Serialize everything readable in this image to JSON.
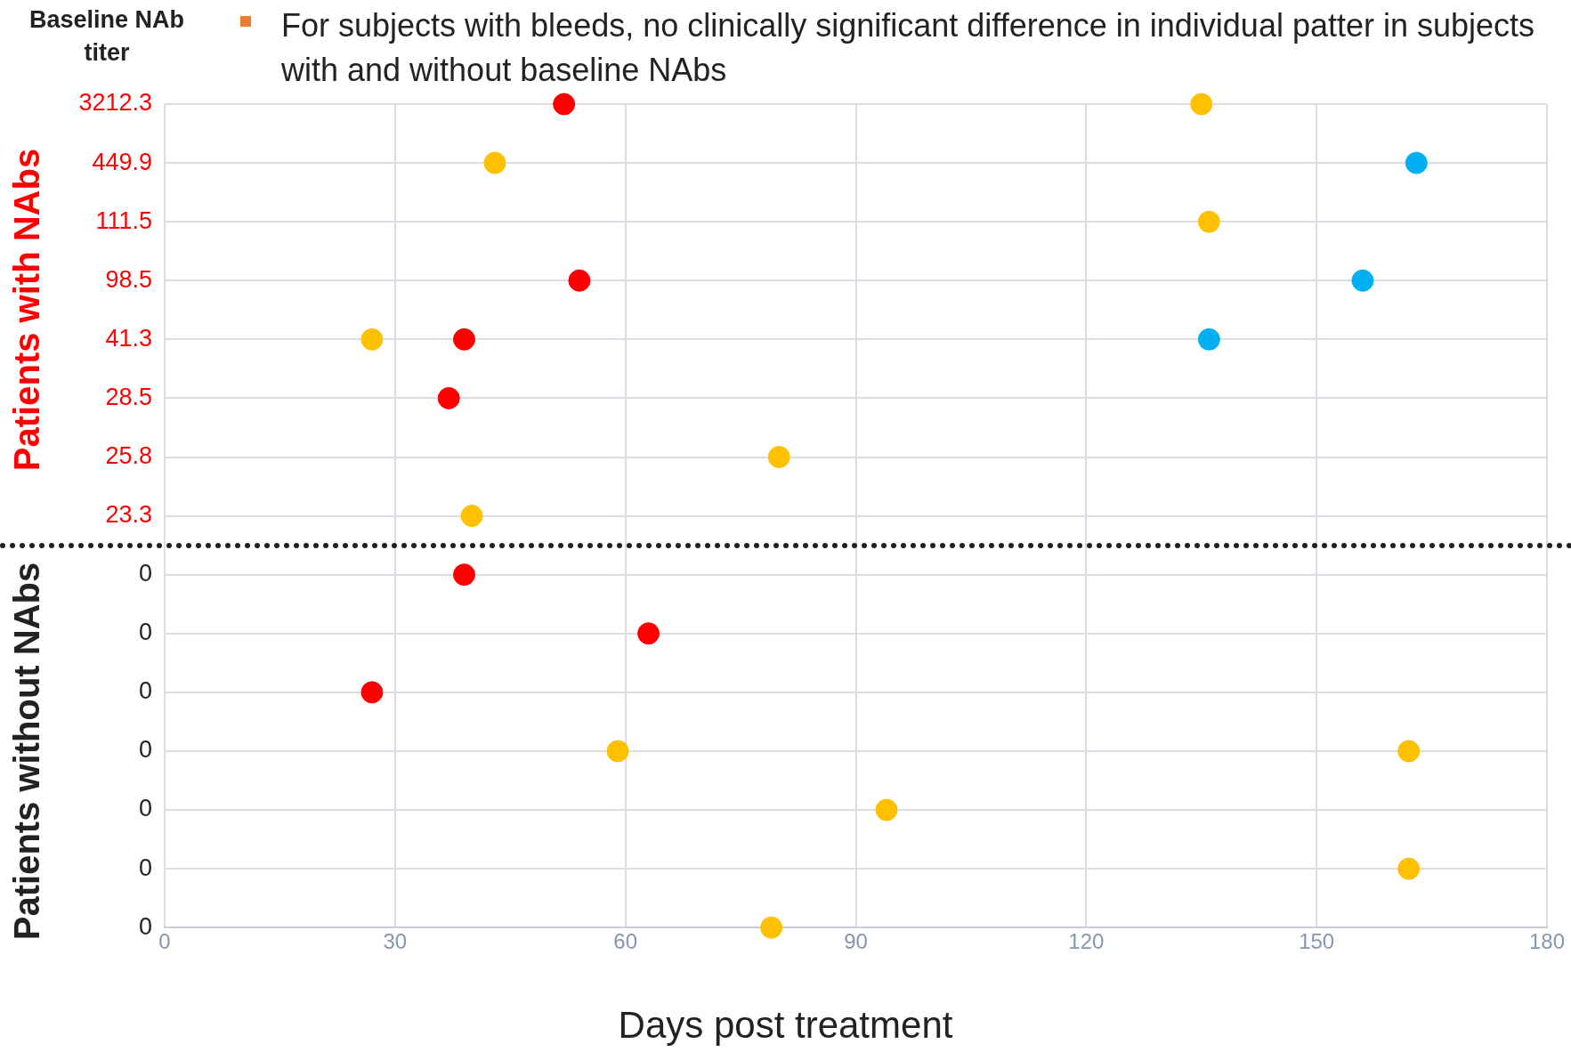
{
  "chart_data": {
    "type": "scatter",
    "orientation": "horizontal",
    "ylabel": "Baseline NAb titer",
    "subtitle": "For subjects with bleeds, no clinically significant difference in individual patter in subjects with and without baseline NAbs",
    "xlabel": "Days post treatment",
    "annotations": [
      "Patients with NAbs",
      "Patients without NAbs"
    ],
    "categories": [
      "3212.3",
      "449.9",
      "111.5",
      "98.5",
      "41.3",
      "28.5",
      "25.8",
      "23.3",
      "0",
      "0",
      "0",
      "0",
      "0",
      "0",
      "0"
    ],
    "series": [
      {
        "color": "#ff0000",
        "values": [
          52,
          null,
          null,
          54,
          39,
          37,
          null,
          null,
          39,
          63,
          27,
          null,
          null,
          null,
          null
        ]
      },
      {
        "color": "#ffc000",
        "values": [
          135,
          43,
          136,
          null,
          27,
          null,
          80,
          40,
          null,
          null,
          null,
          59,
          94,
          162,
          79
        ]
      },
      {
        "color": "#ffc000",
        "values": [
          null,
          null,
          null,
          null,
          null,
          null,
          null,
          null,
          null,
          null,
          null,
          162,
          null,
          null,
          null
        ]
      },
      {
        "color": "#00b0f0",
        "values": [
          null,
          163,
          null,
          156,
          136,
          null,
          null,
          null,
          null,
          null,
          null,
          null,
          null,
          null,
          null
        ]
      }
    ],
    "xlim": [
      0,
      180
    ],
    "xticks": [
      0,
      30,
      60,
      90,
      120,
      150,
      180
    ],
    "grid": true,
    "legend": false,
    "marker": "circle"
  }
}
